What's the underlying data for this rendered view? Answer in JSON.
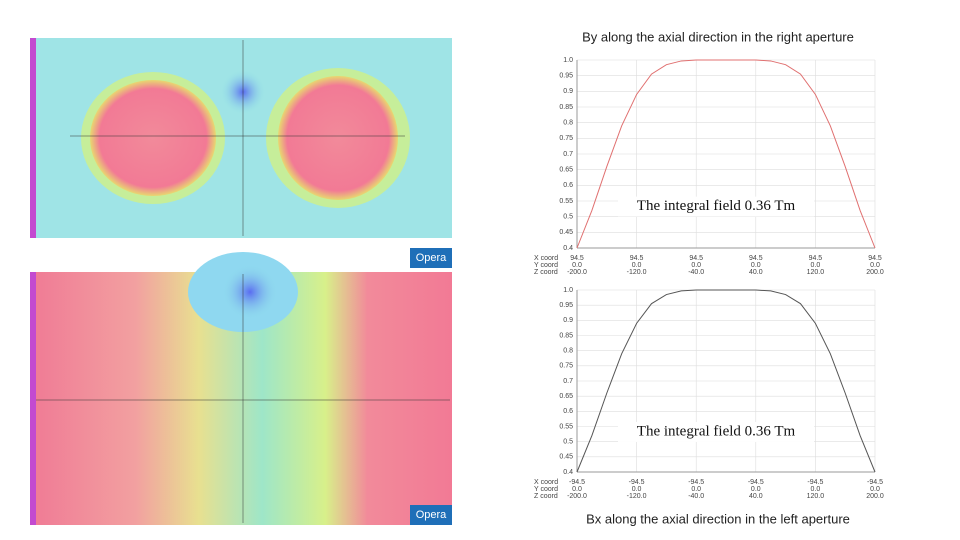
{
  "chart_data": [
    {
      "type": "line",
      "title": "By along the axial direction in the right aperture",
      "title_position": "top",
      "annotation": "The integral field 0.36 Tm",
      "x": [
        -200,
        -180,
        -160,
        -140,
        -120,
        -100,
        -80,
        -60,
        -40,
        -20,
        0,
        20,
        40,
        60,
        80,
        100,
        120,
        140,
        160,
        180,
        200
      ],
      "series": [
        {
          "name": "By",
          "color": "#e07070",
          "values": [
            0.4,
            0.52,
            0.66,
            0.79,
            0.89,
            0.955,
            0.985,
            0.997,
            1.0,
            1.0,
            1.0,
            1.0,
            1.0,
            0.997,
            0.985,
            0.955,
            0.89,
            0.79,
            0.66,
            0.52,
            0.4
          ]
        }
      ],
      "xlim": [
        -200,
        200
      ],
      "ylim": [
        0.4,
        1.0
      ],
      "grid": true,
      "xlabel": "Z coord",
      "xticks": [
        {
          "value": -200,
          "label": "-200.0"
        },
        {
          "value": -120,
          "label": "-120.0"
        },
        {
          "value": -40,
          "label": "-40.0"
        },
        {
          "value": 40,
          "label": "40.0"
        },
        {
          "value": 120,
          "label": "120.0"
        },
        {
          "value": 200,
          "label": "200.0"
        }
      ],
      "xtick_rows": [
        {
          "name": "X coord",
          "labels": [
            "94.5",
            "94.5",
            "94.5",
            "94.5",
            "94.5",
            "94.5"
          ]
        },
        {
          "name": "Y coord",
          "labels": [
            "0.0",
            "0.0",
            "0.0",
            "0.0",
            "0.0",
            "0.0"
          ]
        }
      ],
      "yticks": [
        0.4,
        0.45,
        0.5,
        0.55,
        0.6,
        0.65,
        0.7,
        0.75,
        0.8,
        0.85,
        0.9,
        0.95,
        {
          "value": 1,
          "label": "1.0"
        }
      ]
    },
    {
      "type": "line",
      "title": "Bx along the axial direction in the left aperture",
      "title_position": "bottom",
      "annotation": "The integral field 0.36 Tm",
      "x": [
        -200,
        -180,
        -160,
        -140,
        -120,
        -100,
        -80,
        -60,
        -40,
        -20,
        0,
        20,
        40,
        60,
        80,
        100,
        120,
        140,
        160,
        180,
        200
      ],
      "series": [
        {
          "name": "Bx",
          "color": "#555555",
          "values": [
            0.4,
            0.52,
            0.66,
            0.79,
            0.89,
            0.955,
            0.985,
            0.997,
            1.0,
            1.0,
            1.0,
            1.0,
            1.0,
            0.997,
            0.985,
            0.955,
            0.89,
            0.79,
            0.66,
            0.52,
            0.4
          ]
        }
      ],
      "xlim": [
        -200,
        200
      ],
      "ylim": [
        0.4,
        1.0
      ],
      "grid": true,
      "xlabel": "Z coord",
      "xticks": [
        {
          "value": -200,
          "label": "-200.0"
        },
        {
          "value": -120,
          "label": "-120.0"
        },
        {
          "value": -40,
          "label": "-40.0"
        },
        {
          "value": 40,
          "label": "40.0"
        },
        {
          "value": 120,
          "label": "120.0"
        },
        {
          "value": 200,
          "label": "200.0"
        }
      ],
      "xtick_rows": [
        {
          "name": "X coord",
          "labels": [
            "-94.5",
            "-94.5",
            "-94.5",
            "-94.5",
            "-94.5",
            "-94.5"
          ]
        },
        {
          "name": "Y coord",
          "labels": [
            "0.0",
            "0.0",
            "0.0",
            "0.0",
            "0.0",
            "0.0"
          ]
        }
      ],
      "yticks": [
        0.4,
        0.45,
        0.5,
        0.55,
        0.6,
        0.65,
        0.7,
        0.75,
        0.8,
        0.85,
        0.9,
        0.95,
        {
          "value": 1,
          "label": "1.0"
        }
      ]
    }
  ],
  "badges": [
    "Opera",
    "Opera"
  ]
}
